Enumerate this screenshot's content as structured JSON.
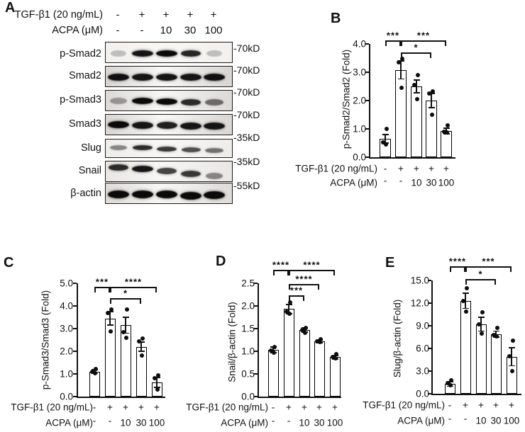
{
  "panel_labels": {
    "A": "A",
    "B": "B",
    "C": "C",
    "D": "D",
    "E": "E"
  },
  "colors": {
    "ink": "#111111",
    "bar_fill": "#ffffff",
    "band": "#0a0a0a"
  },
  "panel_a": {
    "header_rows": [
      {
        "label": "TGF-β1 (20 ng/mL)",
        "values": [
          "-",
          "+",
          "+",
          "+",
          "+"
        ]
      },
      {
        "label": "ACPA (μM)",
        "values": [
          "-",
          "-",
          "10",
          "30",
          "100"
        ]
      }
    ],
    "blots": [
      {
        "name": "p-Smad2",
        "marker": "-70kD",
        "bands": [
          0.22,
          0.95,
          1.0,
          0.88,
          0.22
        ],
        "bg": "#f3f1ee",
        "dy": [
          0,
          0,
          0,
          0,
          0
        ],
        "band_height": 9
      },
      {
        "name": "Smad2",
        "marker": "-70kD",
        "bands": [
          0.97,
          0.95,
          0.95,
          0.95,
          0.97
        ],
        "bg": "#d8d5d2",
        "dy": [
          0,
          0,
          0,
          0,
          0
        ],
        "band_height": 10
      },
      {
        "name": "p-Smad3",
        "marker": "-70kD",
        "bands": [
          0.35,
          1.0,
          1.0,
          0.85,
          0.55
        ],
        "bg": "#dcd9d6",
        "dy": [
          -1,
          -1,
          0,
          1,
          1
        ],
        "band_height": 9
      },
      {
        "name": "Smad3",
        "marker": "-70kD",
        "bands": [
          1.0,
          0.95,
          0.9,
          0.95,
          0.95
        ],
        "bg": "#d9d6d3",
        "dy": [
          -1,
          0,
          0,
          1,
          1
        ],
        "band_height": 10
      },
      {
        "name": "Slug",
        "marker": "-35kD",
        "bands": [
          0.45,
          0.85,
          0.8,
          0.7,
          0.55
        ],
        "bg": "#efedea",
        "dy": [
          -2,
          -2,
          0,
          1,
          2
        ],
        "band_height": 7
      },
      {
        "name": "Snail",
        "marker": "-35kD",
        "bands": [
          0.85,
          0.95,
          0.75,
          0.8,
          0.45
        ],
        "bg": "#e9e6e3",
        "dy": [
          -7,
          -5,
          -2,
          2,
          5
        ],
        "band_height": 9
      },
      {
        "name": "β-actin",
        "marker": "-55kD",
        "bands": [
          1.0,
          1.0,
          1.0,
          1.0,
          1.0
        ],
        "bg": "#dedbd8",
        "dy": [
          0,
          0,
          0,
          2,
          1
        ],
        "band_height": 11
      }
    ]
  },
  "chart_data": [
    {
      "panel": "B",
      "type": "bar",
      "ylabel": "p-Smad2/Smad2 (Fold)",
      "ylim": [
        0,
        4.0
      ],
      "ytick_labels": [
        "0.0",
        "1.0",
        "2.0",
        "3.0",
        "4.0"
      ],
      "values": [
        0.65,
        3.08,
        2.5,
        2.0,
        0.92
      ],
      "errors": [
        0.15,
        0.32,
        0.22,
        0.25,
        0.1
      ],
      "points": [
        [
          1.0,
          0.52,
          0.46
        ],
        [
          3.47,
          3.36,
          2.45
        ],
        [
          2.9,
          2.56,
          2.06
        ],
        [
          2.32,
          2.26,
          1.5
        ],
        [
          1.12,
          0.9,
          0.88
        ]
      ],
      "significance": [
        {
          "from": 0,
          "to": 1,
          "label": "***",
          "row": 0
        },
        {
          "from": 1,
          "to": 4,
          "label": "***",
          "row": 0
        },
        {
          "from": 1,
          "to": 3,
          "label": "*",
          "row": 1
        }
      ],
      "x_rows": [
        {
          "label": "TGF-β1 (20 ng/mL)",
          "values": [
            "-",
            "+",
            "+",
            "+",
            "+"
          ]
        },
        {
          "label": "ACPA (μM)",
          "values": [
            "-",
            "-",
            "10",
            "30",
            "100"
          ]
        }
      ]
    },
    {
      "panel": "C",
      "type": "bar",
      "ylabel": "p-Smad3/Smad3 (Fold)",
      "ylim": [
        0,
        5.0
      ],
      "ytick_labels": [
        "0.0",
        "1.0",
        "2.0",
        "3.0",
        "4.0",
        "5.0"
      ],
      "values": [
        1.1,
        3.45,
        3.15,
        2.2,
        0.63
      ],
      "errors": [
        0.08,
        0.3,
        0.35,
        0.2,
        0.22
      ],
      "points": [
        [
          1.22,
          1.1,
          1.04
        ],
        [
          3.85,
          3.7,
          2.87
        ],
        [
          3.85,
          2.85,
          2.6
        ],
        [
          2.55,
          2.45,
          1.8
        ],
        [
          0.95,
          0.8,
          0.3
        ]
      ],
      "significance": [
        {
          "from": 0,
          "to": 1,
          "label": "***",
          "row": 0
        },
        {
          "from": 1,
          "to": 4,
          "label": "****",
          "row": 0
        },
        {
          "from": 1,
          "to": 3,
          "label": "*",
          "row": 1
        }
      ],
      "x_rows": [
        {
          "label": "TGF-β1 (20 ng/mL)",
          "values": [
            "-",
            "+",
            "+",
            "+",
            "+"
          ]
        },
        {
          "label": "ACPA (μM)",
          "values": [
            "-",
            "-",
            "10",
            "30",
            "100"
          ]
        }
      ]
    },
    {
      "panel": "D",
      "type": "bar",
      "ylabel": "Snail/β-actin (Fold)",
      "ylim": [
        0,
        2.5
      ],
      "ytick_labels": [
        "0.0",
        "0.5",
        "1.0",
        "1.5",
        "2.0",
        "2.5"
      ],
      "values": [
        1.03,
        1.93,
        1.47,
        1.22,
        0.87
      ],
      "errors": [
        0.06,
        0.1,
        0.05,
        0.03,
        0.04
      ],
      "points": [
        [
          1.1,
          1.02,
          0.97
        ],
        [
          2.08,
          1.88,
          1.83
        ],
        [
          1.51,
          1.47,
          1.4
        ],
        [
          1.26,
          1.22,
          1.2
        ],
        [
          0.93,
          0.87,
          0.84
        ]
      ],
      "significance": [
        {
          "from": 0,
          "to": 1,
          "label": "****",
          "row": 0
        },
        {
          "from": 1,
          "to": 4,
          "label": "****",
          "row": 0
        },
        {
          "from": 1,
          "to": 3,
          "label": "****",
          "row": 1
        },
        {
          "from": 1,
          "to": 2,
          "label": "***",
          "row": 2
        }
      ],
      "x_rows": [
        {
          "label": "TGF-β1 (20 ng/mL)",
          "values": [
            "-",
            "+",
            "+",
            "+",
            "+"
          ]
        },
        {
          "label": "ACPA (μM)",
          "values": [
            "-",
            "-",
            "10",
            "30",
            "100"
          ]
        }
      ]
    },
    {
      "panel": "E",
      "type": "bar",
      "ylabel": "Slug/β-actin (Fold)",
      "ylim": [
        0,
        15.0
      ],
      "ytick_labels": [
        "0.0",
        "3.0",
        "6.0",
        "9.0",
        "12.0",
        "15.0"
      ],
      "values": [
        1.3,
        12.3,
        9.2,
        7.9,
        4.9
      ],
      "errors": [
        0.3,
        1.0,
        0.9,
        0.4,
        1.2
      ],
      "points": [
        [
          1.8,
          1.4,
          1.1
        ],
        [
          14.0,
          12.3,
          10.9
        ],
        [
          10.8,
          9.2,
          8.0
        ],
        [
          8.7,
          7.8,
          7.6
        ],
        [
          7.0,
          5.0,
          3.0
        ]
      ],
      "significance": [
        {
          "from": 0,
          "to": 1,
          "label": "****",
          "row": 0
        },
        {
          "from": 1,
          "to": 4,
          "label": "***",
          "row": 0
        },
        {
          "from": 1,
          "to": 3,
          "label": "*",
          "row": 1
        }
      ],
      "x_rows": [
        {
          "label": "TGF-β1 (20 ng/mL)",
          "values": [
            "-",
            "+",
            "+",
            "+",
            "+"
          ]
        },
        {
          "label": "ACPA (μM)",
          "values": [
            "-",
            "-",
            "10",
            "30",
            "100"
          ]
        }
      ]
    }
  ]
}
